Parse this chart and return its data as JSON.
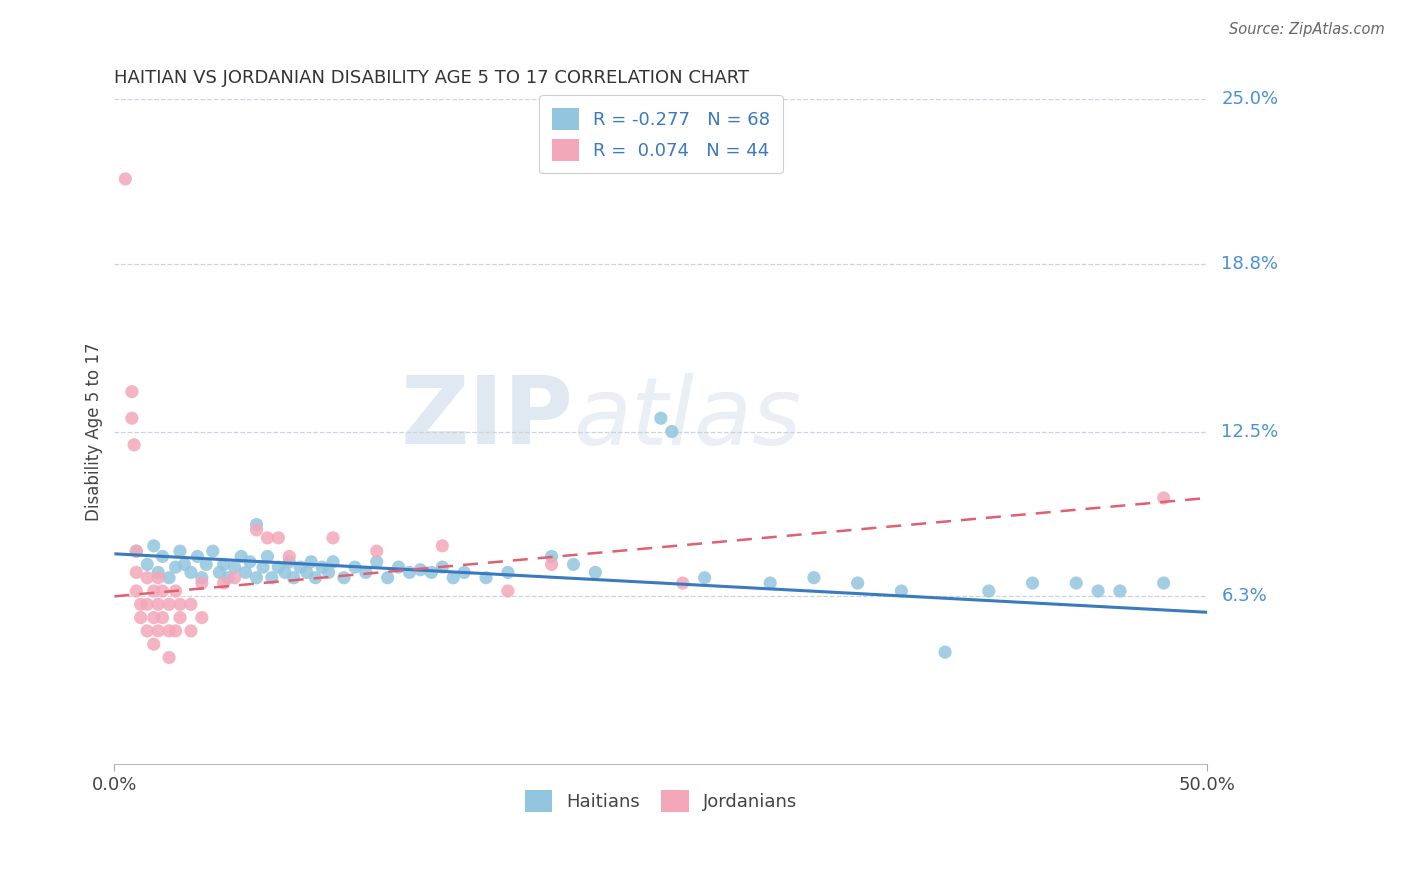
{
  "title": "HAITIAN VS JORDANIAN DISABILITY AGE 5 TO 17 CORRELATION CHART",
  "source": "Source: ZipAtlas.com",
  "ylabel": "Disability Age 5 to 17",
  "xlim": [
    0.0,
    0.5
  ],
  "ylim": [
    0.0,
    0.25
  ],
  "xtick_vals": [
    0.0,
    0.5
  ],
  "xtick_labels": [
    "0.0%",
    "50.0%"
  ],
  "ytick_vals": [
    0.063,
    0.125,
    0.188,
    0.25
  ],
  "ytick_labels": [
    "6.3%",
    "12.5%",
    "18.8%",
    "25.0%"
  ],
  "haitians_color": "#92c5de",
  "jordanians_color": "#f4a7b9",
  "haitians_R": -0.277,
  "haitians_N": 68,
  "jordanians_R": 0.074,
  "jordanians_N": 44,
  "watermark_zip": "ZIP",
  "watermark_atlas": "atlas",
  "haitians_scatter": [
    [
      0.01,
      0.08
    ],
    [
      0.015,
      0.075
    ],
    [
      0.018,
      0.082
    ],
    [
      0.02,
      0.072
    ],
    [
      0.022,
      0.078
    ],
    [
      0.025,
      0.07
    ],
    [
      0.028,
      0.074
    ],
    [
      0.03,
      0.08
    ],
    [
      0.032,
      0.075
    ],
    [
      0.035,
      0.072
    ],
    [
      0.038,
      0.078
    ],
    [
      0.04,
      0.07
    ],
    [
      0.042,
      0.075
    ],
    [
      0.045,
      0.08
    ],
    [
      0.048,
      0.072
    ],
    [
      0.05,
      0.075
    ],
    [
      0.052,
      0.07
    ],
    [
      0.055,
      0.074
    ],
    [
      0.058,
      0.078
    ],
    [
      0.06,
      0.072
    ],
    [
      0.062,
      0.076
    ],
    [
      0.065,
      0.07
    ],
    [
      0.065,
      0.09
    ],
    [
      0.068,
      0.074
    ],
    [
      0.07,
      0.078
    ],
    [
      0.072,
      0.07
    ],
    [
      0.075,
      0.074
    ],
    [
      0.078,
      0.072
    ],
    [
      0.08,
      0.076
    ],
    [
      0.082,
      0.07
    ],
    [
      0.085,
      0.074
    ],
    [
      0.088,
      0.072
    ],
    [
      0.09,
      0.076
    ],
    [
      0.092,
      0.07
    ],
    [
      0.095,
      0.074
    ],
    [
      0.098,
      0.072
    ],
    [
      0.1,
      0.076
    ],
    [
      0.105,
      0.07
    ],
    [
      0.11,
      0.074
    ],
    [
      0.115,
      0.072
    ],
    [
      0.12,
      0.076
    ],
    [
      0.125,
      0.07
    ],
    [
      0.13,
      0.074
    ],
    [
      0.135,
      0.072
    ],
    [
      0.14,
      0.073
    ],
    [
      0.145,
      0.072
    ],
    [
      0.15,
      0.074
    ],
    [
      0.155,
      0.07
    ],
    [
      0.16,
      0.072
    ],
    [
      0.17,
      0.07
    ],
    [
      0.18,
      0.072
    ],
    [
      0.2,
      0.078
    ],
    [
      0.21,
      0.075
    ],
    [
      0.22,
      0.072
    ],
    [
      0.25,
      0.13
    ],
    [
      0.255,
      0.125
    ],
    [
      0.27,
      0.07
    ],
    [
      0.3,
      0.068
    ],
    [
      0.32,
      0.07
    ],
    [
      0.34,
      0.068
    ],
    [
      0.36,
      0.065
    ],
    [
      0.38,
      0.042
    ],
    [
      0.4,
      0.065
    ],
    [
      0.42,
      0.068
    ],
    [
      0.44,
      0.068
    ],
    [
      0.45,
      0.065
    ],
    [
      0.46,
      0.065
    ],
    [
      0.48,
      0.068
    ]
  ],
  "jordanians_scatter": [
    [
      0.005,
      0.22
    ],
    [
      0.008,
      0.14
    ],
    [
      0.008,
      0.13
    ],
    [
      0.009,
      0.12
    ],
    [
      0.01,
      0.08
    ],
    [
      0.01,
      0.072
    ],
    [
      0.01,
      0.065
    ],
    [
      0.012,
      0.06
    ],
    [
      0.012,
      0.055
    ],
    [
      0.015,
      0.07
    ],
    [
      0.015,
      0.06
    ],
    [
      0.015,
      0.05
    ],
    [
      0.018,
      0.065
    ],
    [
      0.018,
      0.055
    ],
    [
      0.018,
      0.045
    ],
    [
      0.02,
      0.07
    ],
    [
      0.02,
      0.06
    ],
    [
      0.02,
      0.05
    ],
    [
      0.022,
      0.065
    ],
    [
      0.022,
      0.055
    ],
    [
      0.025,
      0.06
    ],
    [
      0.025,
      0.05
    ],
    [
      0.025,
      0.04
    ],
    [
      0.028,
      0.065
    ],
    [
      0.028,
      0.05
    ],
    [
      0.03,
      0.06
    ],
    [
      0.03,
      0.055
    ],
    [
      0.035,
      0.06
    ],
    [
      0.035,
      0.05
    ],
    [
      0.04,
      0.055
    ],
    [
      0.04,
      0.068
    ],
    [
      0.05,
      0.068
    ],
    [
      0.055,
      0.07
    ],
    [
      0.065,
      0.088
    ],
    [
      0.07,
      0.085
    ],
    [
      0.075,
      0.085
    ],
    [
      0.08,
      0.078
    ],
    [
      0.1,
      0.085
    ],
    [
      0.12,
      0.08
    ],
    [
      0.15,
      0.082
    ],
    [
      0.18,
      0.065
    ],
    [
      0.2,
      0.075
    ],
    [
      0.26,
      0.068
    ],
    [
      0.48,
      0.1
    ]
  ],
  "h_trend_x0": 0.0,
  "h_trend_y0": 0.079,
  "h_trend_x1": 0.5,
  "h_trend_y1": 0.057,
  "j_trend_x0": 0.0,
  "j_trend_y0": 0.063,
  "j_trend_x1": 0.5,
  "j_trend_y1": 0.1
}
